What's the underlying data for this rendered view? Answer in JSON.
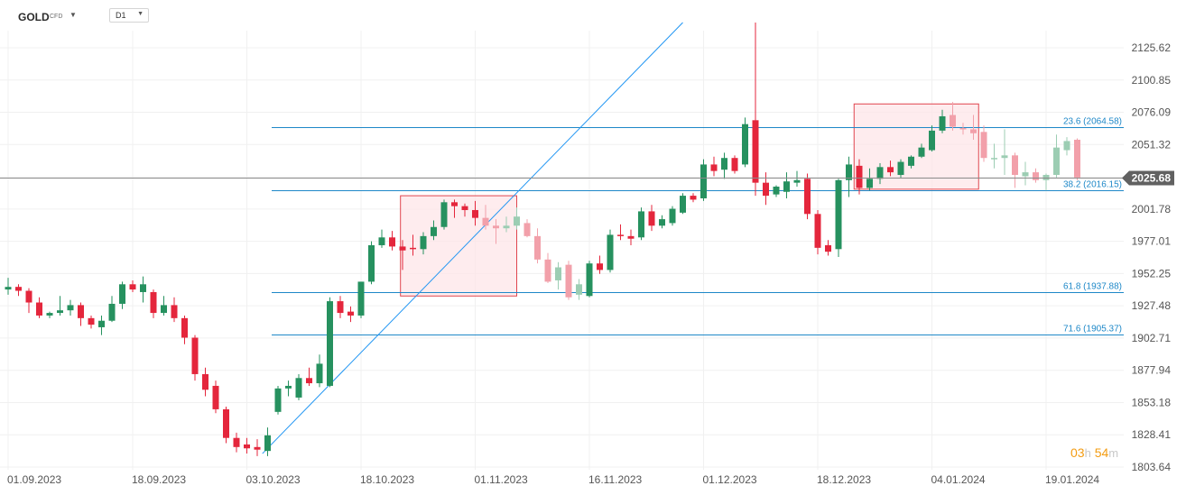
{
  "header": {
    "symbol": "GOLD",
    "instrument_type": "CFD",
    "timeframe": "D1"
  },
  "countdown": {
    "hours": "03",
    "hours_unit": "h",
    "minutes": "54",
    "minutes_unit": "m"
  },
  "colors": {
    "up": "#26915f",
    "down": "#e4263c",
    "up_faded": "#9ccdb3",
    "down_faded": "#f2a0aa",
    "fib_line": "#1e88c8",
    "trend_line": "#2196f3",
    "box_border": "#e0454e",
    "box_fill": "#fde6e8",
    "current_price_tag": "#616161",
    "countdown": "#f39c12"
  },
  "chart_data": {
    "type": "candlestick",
    "instrument": "GOLD",
    "timeframe": "D1",
    "y_axis": {
      "ylim": [
        1803.64,
        2138.0
      ],
      "ticks": [
        2125.62,
        2100.85,
        2076.09,
        2051.32,
        2026.55,
        2001.78,
        1977.01,
        1952.25,
        1927.48,
        1902.71,
        1877.94,
        1853.18,
        1828.41,
        1803.64
      ],
      "tick_labels": [
        "2125.62",
        "2100.85",
        "2076.09",
        "2051.32",
        "2026.55",
        "2001.78",
        "1977.01",
        "1952.25",
        "1927.48",
        "1902.71",
        "1877.94",
        "1853.18",
        "1828.41",
        "1803.64"
      ]
    },
    "x_axis": {
      "tick_labels": [
        "01.09.2023",
        "18.09.2023",
        "03.10.2023",
        "18.10.2023",
        "01.11.2023",
        "16.11.2023",
        "01.12.2023",
        "18.12.2023",
        "04.01.2024",
        "19.01.2024"
      ],
      "tick_bars": [
        0,
        12,
        23,
        34,
        45,
        56,
        67,
        78,
        89,
        100
      ]
    },
    "grid": true,
    "current_price": 2025.68,
    "current_price_label": "2025.68",
    "candles": [
      [
        1940.0,
        1949.0,
        1936.0,
        1942.0
      ],
      [
        1942.0,
        1944.0,
        1935.0,
        1939.0
      ],
      [
        1939.0,
        1941.0,
        1922.0,
        1930.0
      ],
      [
        1930.0,
        1934.0,
        1918.0,
        1920.0
      ],
      [
        1920.0,
        1923.0,
        1918.0,
        1922.0
      ],
      [
        1922.0,
        1935.0,
        1920.0,
        1924.0
      ],
      [
        1924.0,
        1932.0,
        1920.0,
        1928.0
      ],
      [
        1928.0,
        1930.0,
        1912.0,
        1918.0
      ],
      [
        1918.0,
        1920.0,
        1910.0,
        1913.0
      ],
      [
        1911.0,
        1920.0,
        1905.0,
        1916.0
      ],
      [
        1916.0,
        1935.0,
        1915.0,
        1929.0
      ],
      [
        1929.0,
        1946.0,
        1925.0,
        1944.0
      ],
      [
        1944.0,
        1947.0,
        1938.0,
        1940.0
      ],
      [
        1938.0,
        1950.0,
        1930.0,
        1944.0
      ],
      [
        1938.0,
        1940.0,
        1918.0,
        1922.0
      ],
      [
        1922.0,
        1935.0,
        1920.0,
        1928.0
      ],
      [
        1928.0,
        1934.0,
        1915.0,
        1918.0
      ],
      [
        1918.0,
        1920.0,
        1898.0,
        1903.0
      ],
      [
        1903.0,
        1905.0,
        1870.0,
        1875.0
      ],
      [
        1875.0,
        1880.0,
        1858.0,
        1863.0
      ],
      [
        1866.0,
        1870.0,
        1845.0,
        1848.0
      ],
      [
        1848.0,
        1850.0,
        1822.0,
        1826.0
      ],
      [
        1826.0,
        1830.0,
        1815.0,
        1819.0
      ],
      [
        1821.0,
        1826.0,
        1814.0,
        1818.0
      ],
      [
        1819.0,
        1825.0,
        1812.0,
        1817.0
      ],
      [
        1816.0,
        1834.0,
        1812.0,
        1828.0
      ],
      [
        1846.0,
        1866.0,
        1844.0,
        1864.0
      ],
      [
        1864.0,
        1870.0,
        1858.0,
        1866.0
      ],
      [
        1857.0,
        1875.0,
        1855.0,
        1872.0
      ],
      [
        1872.0,
        1880.0,
        1866.0,
        1868.0
      ],
      [
        1868.0,
        1890.0,
        1865.0,
        1883.0
      ],
      [
        1866.0,
        1934.0,
        1865.0,
        1931.0
      ],
      [
        1931.0,
        1935.0,
        1918.0,
        1922.0
      ],
      [
        1923.0,
        1927.0,
        1915.0,
        1920.0
      ],
      [
        1920.0,
        1945.0,
        1918.0,
        1946.0
      ],
      [
        1946.0,
        1977.0,
        1944.0,
        1974.0
      ],
      [
        1974.0,
        1986.0,
        1972.0,
        1980.0
      ],
      [
        1980.0,
        1985.0,
        1970.0,
        1973.0
      ],
      [
        1973.0,
        1978.0,
        1955.0,
        1970.0
      ],
      [
        1972.0,
        1982.0,
        1966.0,
        1971.0
      ],
      [
        1971.0,
        1984.0,
        1967.0,
        1981.0
      ],
      [
        1981.0,
        1993.0,
        1978.0,
        1988.0
      ],
      [
        1988.0,
        2009.0,
        1986.0,
        2007.0
      ],
      [
        2007.0,
        2009.0,
        1995.0,
        2004.0
      ],
      [
        2004.0,
        2006.0,
        1996.0,
        2001.0
      ],
      [
        2001.0,
        2008.0,
        1989.0,
        1995.0
      ],
      [
        1995.0,
        2005.0,
        1986.0,
        1989.0
      ],
      [
        1989.0,
        1994.0,
        1975.0,
        1987.0
      ],
      [
        1987.0,
        1996.0,
        1984.0,
        1989.0
      ],
      [
        1989.0,
        2003.0,
        1986.0,
        1996.0
      ],
      [
        1991.0,
        1994.0,
        1980.0,
        1981.0
      ],
      [
        1981.0,
        1987.0,
        1960.0,
        1963.0
      ],
      [
        1963.0,
        1968.0,
        1945.0,
        1946.0
      ],
      [
        1947.0,
        1961.0,
        1940.0,
        1957.0
      ],
      [
        1959.0,
        1962.0,
        1932.0,
        1934.0
      ],
      [
        1936.0,
        1948.0,
        1932.0,
        1944.0
      ],
      [
        1935.0,
        1962.0,
        1934.0,
        1960.0
      ],
      [
        1960.0,
        1966.0,
        1952.0,
        1955.0
      ],
      [
        1955.0,
        1986.0,
        1953.0,
        1982.0
      ],
      [
        1982.0,
        1990.0,
        1978.0,
        1981.0
      ],
      [
        1981.0,
        1986.0,
        1974.0,
        1979.0
      ],
      [
        1980.0,
        2003.0,
        1978.0,
        2000.0
      ],
      [
        2000.0,
        2005.0,
        1985.0,
        1989.0
      ],
      [
        1989.0,
        1997.0,
        1987.0,
        1994.0
      ],
      [
        1991.0,
        2004.0,
        1989.0,
        2002.0
      ],
      [
        1999.0,
        2014.0,
        1998.0,
        2012.0
      ],
      [
        2012.0,
        2014.0,
        2007.0,
        2009.0
      ],
      [
        2010.0,
        2040.0,
        2008.0,
        2036.0
      ],
      [
        2036.0,
        2042.0,
        2027.0,
        2031.0
      ],
      [
        2032.0,
        2045.0,
        2025.0,
        2041.0
      ],
      [
        2041.0,
        2043.0,
        2029.0,
        2031.0
      ],
      [
        2036.0,
        2072.0,
        2034.0,
        2067.0
      ],
      [
        2070.0,
        2145.0,
        2012.0,
        2022.0
      ],
      [
        2022.0,
        2030.0,
        2005.0,
        2012.0
      ],
      [
        2013.0,
        2020.0,
        2011.0,
        2019.0
      ],
      [
        2015.0,
        2030.0,
        2010.0,
        2023.0
      ],
      [
        2022.0,
        2031.0,
        2019.0,
        2024.0
      ],
      [
        2025.0,
        2029.0,
        1994.0,
        1998.0
      ],
      [
        1998.0,
        2001.0,
        1967.0,
        1972.0
      ],
      [
        1974.0,
        1978.0,
        1966.0,
        1969.0
      ],
      [
        1971.0,
        2025.0,
        1965.0,
        2024.0
      ],
      [
        2024.0,
        2042.0,
        2011.0,
        2036.0
      ],
      [
        2035.0,
        2040.0,
        2013.0,
        2018.0
      ],
      [
        2018.0,
        2033.0,
        2016.0,
        2025.0
      ],
      [
        2025.0,
        2037.0,
        2021.0,
        2034.0
      ],
      [
        2034.0,
        2039.0,
        2027.0,
        2030.0
      ],
      [
        2028.0,
        2040.0,
        2026.0,
        2038.0
      ],
      [
        2035.0,
        2043.0,
        2033.0,
        2042.0
      ],
      [
        2042.0,
        2052.0,
        2041.0,
        2049.0
      ],
      [
        2047.0,
        2066.0,
        2046.0,
        2062.0
      ],
      [
        2062.0,
        2078.0,
        2060.0,
        2073.0
      ],
      [
        2074.0,
        2084.0,
        2062.0,
        2065.0
      ],
      [
        2064.0,
        2068.0,
        2059.0,
        2063.0
      ],
      [
        2063.0,
        2074.0,
        2055.0,
        2060.0
      ],
      [
        2061.0,
        2066.0,
        2038.0,
        2041.0
      ],
      [
        2041.0,
        2052.0,
        2033.0,
        2041.0
      ],
      [
        2041.0,
        2063.0,
        2028.0,
        2043.0
      ],
      [
        2043.0,
        2045.0,
        2018.0,
        2028.0
      ],
      [
        2027.0,
        2038.0,
        2020.0,
        2030.0
      ],
      [
        2030.0,
        2033.0,
        2022.0,
        2024.0
      ],
      [
        2024.0,
        2029.0,
        2016.0,
        2028.0
      ],
      [
        2028.0,
        2059.0,
        2026.0,
        2049.0
      ],
      [
        2047.0,
        2057.0,
        2043.0,
        2054.0
      ],
      [
        2055.0,
        2056.0,
        2024.0,
        2026.0
      ]
    ],
    "faded_ranges": [
      [
        46,
        55
      ],
      [
        91,
        103
      ]
    ],
    "fibonacci_levels": [
      {
        "label": "23.6 (2064.58)",
        "price": 2064.58
      },
      {
        "label": "38.2 (2016.15)",
        "price": 2016.15
      },
      {
        "label": "61.8 (1937.88)",
        "price": 1937.88
      },
      {
        "label": "71.6 (1905.37)",
        "price": 1905.37
      }
    ],
    "trend_line": {
      "from": [
        24.5,
        1814.0
      ],
      "to": [
        65.0,
        2145.0
      ]
    },
    "highlight_boxes": [
      {
        "bars": [
          37.8,
          49.0
        ],
        "price_top": 2012.0,
        "price_bottom": 1935.0
      },
      {
        "bars": [
          81.5,
          93.5
        ],
        "price_top": 2082.5,
        "price_bottom": 2017.0
      }
    ]
  }
}
